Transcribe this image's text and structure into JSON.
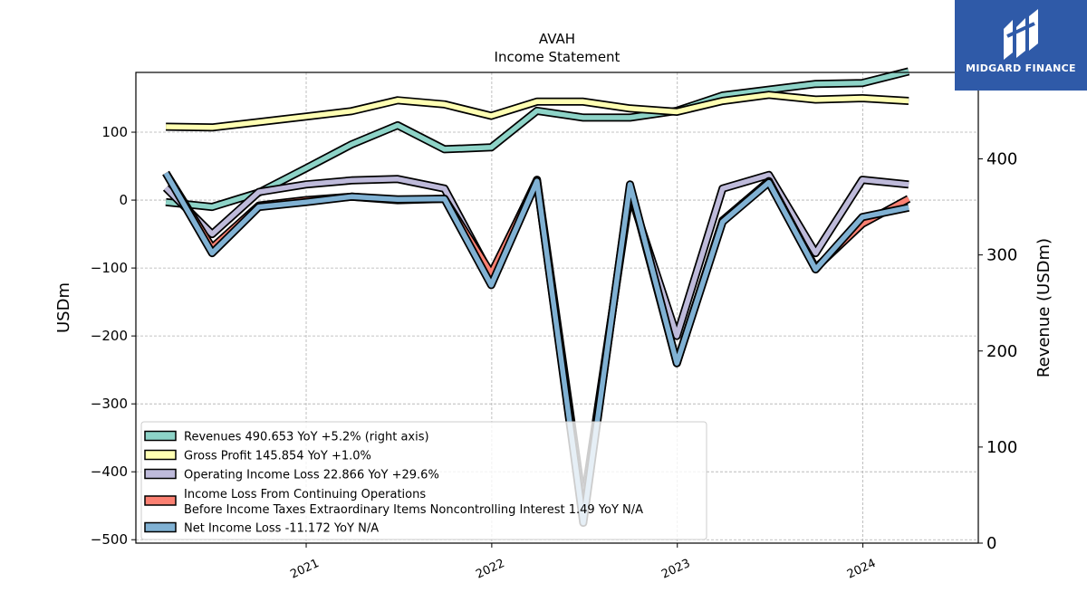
{
  "chart_data": {
    "type": "line",
    "title": "AVAH",
    "subtitle": "Income Statement",
    "ylabel_left": "USDm",
    "ylabel_right": "Revenue (USDm)",
    "ylim_left": [
      -505,
      188
    ],
    "ylim_right": [
      0,
      490
    ],
    "yticks_left": [
      100,
      0,
      -100,
      -200,
      -300,
      -400,
      -500
    ],
    "yticks_left_labels": [
      "100",
      "0",
      "−100",
      "−200",
      "−300",
      "−400",
      "−500"
    ],
    "yticks_right": [
      400,
      300,
      200,
      100,
      0
    ],
    "yticks_right_labels": [
      "400",
      "300",
      "200",
      "100",
      "0"
    ],
    "xlim": [
      "2020-02-01",
      "2024-08-15"
    ],
    "xticks": [
      "2021-01-01",
      "2022-01-01",
      "2023-01-01",
      "2024-01-01"
    ],
    "xtick_labels": [
      "2021",
      "2022",
      "2023",
      "2024"
    ],
    "grid": true,
    "legend_position": "lower-left",
    "x": [
      "2020-03-31",
      "2020-06-30",
      "2020-09-30",
      "2020-12-31",
      "2021-03-31",
      "2021-06-30",
      "2021-09-30",
      "2021-12-31",
      "2022-03-31",
      "2022-06-30",
      "2022-09-30",
      "2022-12-31",
      "2023-03-31",
      "2023-06-30",
      "2023-09-30",
      "2023-12-31",
      "2024-03-31"
    ],
    "series": [
      {
        "name": "Revenues  490.653 YoY +5.2% (right axis)",
        "axis": "right",
        "color": "#8dd3c7",
        "values": [
          355,
          350,
          365,
          390,
          415,
          435,
          410,
          412,
          450,
          443,
          443,
          450,
          466,
          472,
          478,
          479,
          491
        ]
      },
      {
        "name": "Gross Profit  145.854 YoY +1.0%",
        "axis": "left",
        "color": "#ffffb3",
        "values": [
          108,
          107,
          115,
          123,
          131,
          147,
          141,
          124,
          145,
          145,
          135,
          130,
          146,
          155,
          148,
          150,
          146
        ]
      },
      {
        "name": "Operating Income Loss  22.866 YoY +29.6%",
        "axis": "left",
        "color": "#bebada",
        "values": [
          18,
          -50,
          12,
          23,
          29,
          31,
          17,
          -111,
          30,
          -450,
          10,
          -200,
          17,
          37,
          -78,
          30,
          23
        ]
      },
      {
        "name": "Income Loss From Continuing Operations\nBefore Income Taxes Extraordinary Items Noncontrolling Interest  1.49 YoY N/A",
        "axis": "left",
        "color": "#fb8072",
        "values": [
          40,
          -70,
          -8,
          0,
          5,
          0,
          2,
          -108,
          28,
          -470,
          20,
          -240,
          -30,
          28,
          -100,
          -35,
          2
        ]
      },
      {
        "name": "Net Income Loss  -11.172 YoY N/A",
        "axis": "left",
        "color": "#80b1d3",
        "values": [
          40,
          -78,
          -10,
          -3,
          5,
          1,
          2,
          -125,
          28,
          -475,
          23,
          -240,
          -32,
          26,
          -102,
          -25,
          -11
        ]
      }
    ]
  },
  "logo": {
    "text": "MIDGARD FINANCE"
  }
}
